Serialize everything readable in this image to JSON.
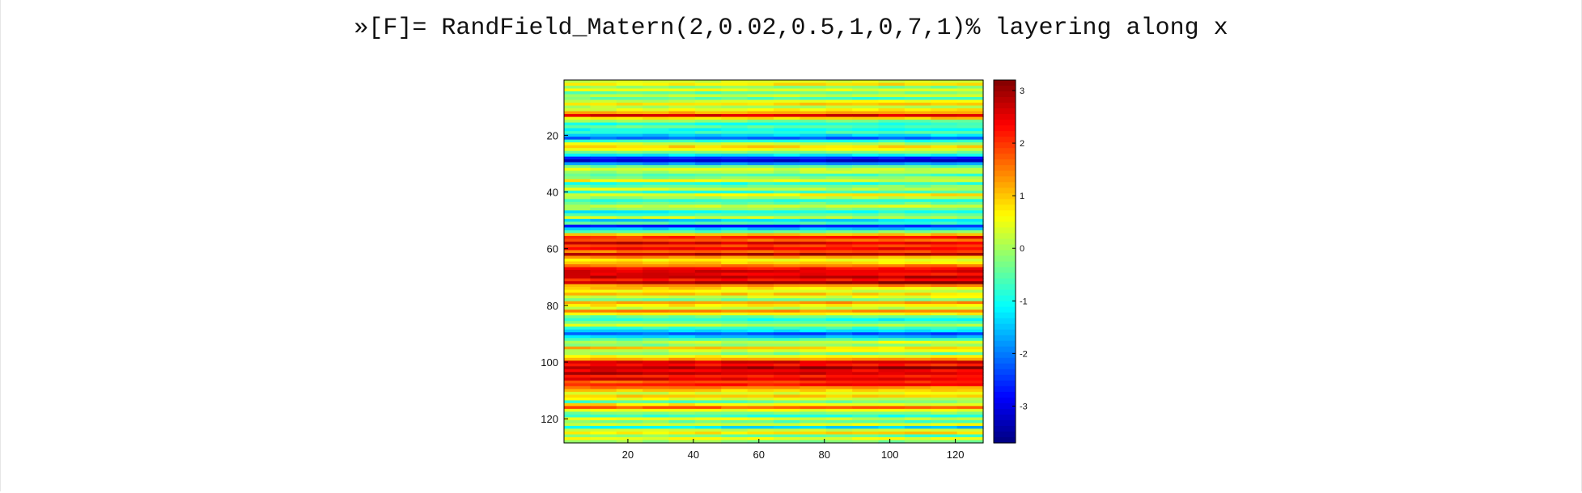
{
  "command_line": "»[F]= RandField_Matern(2,0.02,0.5,1,0,7,1)% layering along x",
  "chart_data": {
    "type": "heatmap",
    "title": "",
    "xlabel": "",
    "ylabel": "",
    "colormap": "jet",
    "xlim": [
      0.5,
      128.5
    ],
    "ylim": [
      0.5,
      128.5
    ],
    "y_direction": "reversed",
    "x_ticks": [
      20,
      40,
      60,
      80,
      100,
      120
    ],
    "y_ticks": [
      20,
      40,
      60,
      80,
      100,
      120
    ],
    "colorbar": {
      "range": [
        -3.7,
        3.2
      ],
      "ticks": [
        3,
        2,
        1,
        0,
        -1,
        -2,
        -3
      ]
    },
    "grid_size": [
      128,
      128
    ],
    "row_means": [
      [
        1,
        0.3
      ],
      [
        2,
        0.8
      ],
      [
        3,
        -0.2
      ],
      [
        4,
        0.5
      ],
      [
        5,
        -0.4
      ],
      [
        6,
        0.2
      ],
      [
        7,
        -0.6
      ],
      [
        8,
        0.4
      ],
      [
        9,
        0.9
      ],
      [
        10,
        0.1
      ],
      [
        11,
        0.6
      ],
      [
        12,
        1.2
      ],
      [
        13,
        2.6
      ],
      [
        14,
        0.8
      ],
      [
        15,
        -0.3
      ],
      [
        16,
        -0.9
      ],
      [
        17,
        -0.5
      ],
      [
        18,
        -1.1
      ],
      [
        19,
        -0.7
      ],
      [
        20,
        -1.4
      ],
      [
        21,
        -2.2
      ],
      [
        22,
        -0.8
      ],
      [
        23,
        0.2
      ],
      [
        24,
        0.9
      ],
      [
        25,
        0.5
      ],
      [
        26,
        -0.3
      ],
      [
        27,
        -1.2
      ],
      [
        28,
        -2.6
      ],
      [
        29,
        -3.2
      ],
      [
        30,
        -1.8
      ],
      [
        31,
        -0.4
      ],
      [
        32,
        0.3
      ],
      [
        33,
        0.1
      ],
      [
        34,
        -0.6
      ],
      [
        35,
        -0.2
      ],
      [
        36,
        0.4
      ],
      [
        37,
        -0.9
      ],
      [
        38,
        -0.3
      ],
      [
        39,
        0.2
      ],
      [
        40,
        -0.7
      ],
      [
        41,
        0.6
      ],
      [
        42,
        0.1
      ],
      [
        43,
        -0.8
      ],
      [
        44,
        -0.4
      ],
      [
        45,
        0.3
      ],
      [
        46,
        -0.2
      ],
      [
        47,
        -1.0
      ],
      [
        48,
        -0.5
      ],
      [
        49,
        0.2
      ],
      [
        50,
        -1.4
      ],
      [
        51,
        -0.6
      ],
      [
        52,
        -2.6
      ],
      [
        53,
        -1.5
      ],
      [
        54,
        -0.4
      ],
      [
        55,
        1.0
      ],
      [
        56,
        2.2
      ],
      [
        57,
        1.6
      ],
      [
        58,
        2.6
      ],
      [
        59,
        1.9
      ],
      [
        60,
        2.4
      ],
      [
        61,
        1.7
      ],
      [
        62,
        2.9
      ],
      [
        63,
        1.2
      ],
      [
        64,
        0.5
      ],
      [
        65,
        0.9
      ],
      [
        66,
        1.5
      ],
      [
        67,
        2.3
      ],
      [
        68,
        2.6
      ],
      [
        69,
        2.4
      ],
      [
        70,
        2.8
      ],
      [
        71,
        2.2
      ],
      [
        72,
        3.0
      ],
      [
        73,
        1.4
      ],
      [
        74,
        0.8
      ],
      [
        75,
        0.4
      ],
      [
        76,
        1.0
      ],
      [
        77,
        0.3
      ],
      [
        78,
        -0.3
      ],
      [
        79,
        1.3
      ],
      [
        80,
        0.7
      ],
      [
        81,
        0.2
      ],
      [
        82,
        1.4
      ],
      [
        83,
        0.6
      ],
      [
        84,
        -0.4
      ],
      [
        85,
        -1.0
      ],
      [
        86,
        -0.5
      ],
      [
        87,
        0.2
      ],
      [
        88,
        -0.8
      ],
      [
        89,
        -1.3
      ],
      [
        90,
        -2.3
      ],
      [
        91,
        -1.5
      ],
      [
        92,
        -0.6
      ],
      [
        93,
        0.3
      ],
      [
        94,
        -0.2
      ],
      [
        95,
        0.9
      ],
      [
        96,
        0.4
      ],
      [
        97,
        -0.3
      ],
      [
        98,
        0.6
      ],
      [
        99,
        1.3
      ],
      [
        100,
        2.6
      ],
      [
        101,
        2.2
      ],
      [
        102,
        3.0
      ],
      [
        103,
        2.4
      ],
      [
        104,
        2.7
      ],
      [
        105,
        2.2
      ],
      [
        106,
        2.5
      ],
      [
        107,
        1.9
      ],
      [
        108,
        2.3
      ],
      [
        109,
        1.4
      ],
      [
        110,
        0.9
      ],
      [
        111,
        0.4
      ],
      [
        112,
        1.0
      ],
      [
        113,
        0.3
      ],
      [
        114,
        -0.4
      ],
      [
        115,
        0.6
      ],
      [
        116,
        1.7
      ],
      [
        117,
        0.5
      ],
      [
        118,
        -0.2
      ],
      [
        119,
        -0.8
      ],
      [
        120,
        0.3
      ],
      [
        121,
        -0.5
      ],
      [
        122,
        0.4
      ],
      [
        123,
        -1.3
      ],
      [
        124,
        0.2
      ],
      [
        125,
        0.8
      ],
      [
        126,
        -0.4
      ],
      [
        127,
        0.5
      ],
      [
        128,
        -0.2
      ]
    ]
  }
}
